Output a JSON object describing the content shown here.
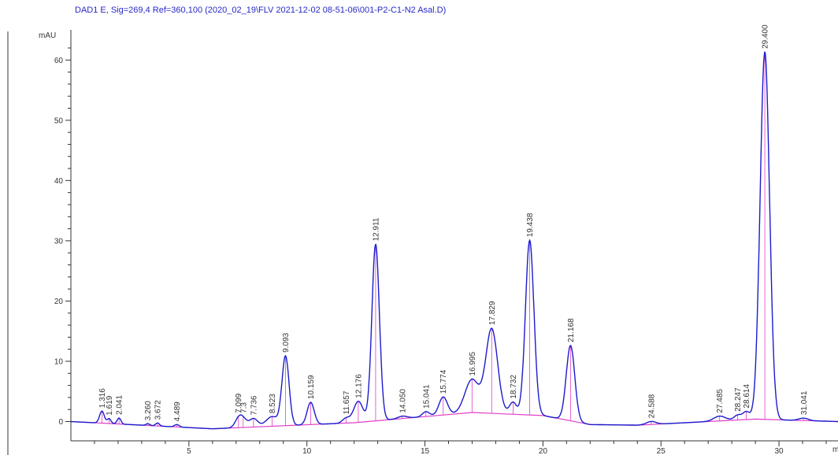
{
  "chart_data": {
    "type": "line",
    "title": "DAD1 E, Sig=269,4 Ref=360,100 (2020_02_19\\FLV 2021-12-02 08-51-06\\001-P2-C1-N2 Asal.D)",
    "ylabel": "mAU",
    "xlabel": "",
    "x_unit_label": "m",
    "xlim": [
      0,
      32.5
    ],
    "ylim": [
      -3.2,
      65
    ],
    "x_ticks": [
      5,
      10,
      15,
      20,
      25,
      30
    ],
    "x_tick_labels": [
      "5",
      "10",
      "15",
      "20",
      "25",
      "30"
    ],
    "y_ticks": [
      0,
      10,
      20,
      30,
      40,
      50,
      60
    ],
    "y_tick_labels": [
      "0",
      "10",
      "20",
      "30",
      "40",
      "50",
      "60"
    ],
    "grid": false,
    "colors": {
      "signal": "#1c1ccc",
      "baseline": "#e040c8",
      "title": "#2828c8",
      "axis": "#333333"
    },
    "peaks": [
      {
        "rt": 1.316,
        "label": "1.316",
        "height": 2.0,
        "width": 0.1
      },
      {
        "rt": 1.619,
        "label": "1.619",
        "height": 0.8,
        "width": 0.08
      },
      {
        "rt": 2.041,
        "label": "2.041",
        "height": 1.0,
        "width": 0.08
      },
      {
        "rt": 3.26,
        "label": "3.260",
        "height": 0.3,
        "width": 0.08
      },
      {
        "rt": 3.672,
        "label": "3.672",
        "height": 0.5,
        "width": 0.08
      },
      {
        "rt": 4.489,
        "label": "4.489",
        "height": 0.4,
        "width": 0.1
      },
      {
        "rt": 7.099,
        "label": "7.099",
        "height": 1.4,
        "width": 0.15
      },
      {
        "rt": 7.3,
        "label": "7.3",
        "height": 1.2,
        "width": 0.15
      },
      {
        "rt": 7.736,
        "label": "7.736",
        "height": 1.4,
        "width": 0.18
      },
      {
        "rt": 8.523,
        "label": "8.523",
        "height": 1.6,
        "width": 0.25
      },
      {
        "rt": 9.093,
        "label": "9.093",
        "height": 11.5,
        "width": 0.15
      },
      {
        "rt": 10.159,
        "label": "10.159",
        "height": 3.7,
        "width": 0.15
      },
      {
        "rt": 11.657,
        "label": "11.657",
        "height": 0.8,
        "width": 0.15
      },
      {
        "rt": 12.176,
        "label": "12.176",
        "height": 3.5,
        "width": 0.2
      },
      {
        "rt": 12.911,
        "label": "12.911",
        "height": 29.3,
        "width": 0.16
      },
      {
        "rt": 14.05,
        "label": "14.050",
        "height": 0.4,
        "width": 0.2
      },
      {
        "rt": 15.041,
        "label": "15.041",
        "height": 0.8,
        "width": 0.15
      },
      {
        "rt": 15.774,
        "label": "15.774",
        "height": 3.0,
        "width": 0.18
      },
      {
        "rt": 16.995,
        "label": "16.995",
        "height": 5.5,
        "width": 0.3
      },
      {
        "rt": 17.829,
        "label": "17.829",
        "height": 14.0,
        "width": 0.25
      },
      {
        "rt": 18.732,
        "label": "18.732",
        "height": 2.0,
        "width": 0.15
      },
      {
        "rt": 19.438,
        "label": "19.438",
        "height": 29.0,
        "width": 0.18
      },
      {
        "rt": 21.168,
        "label": "21.168",
        "height": 12.5,
        "width": 0.18
      },
      {
        "rt": 24.588,
        "label": "24.588",
        "height": 0.5,
        "width": 0.2
      },
      {
        "rt": 27.485,
        "label": "27.485",
        "height": 0.8,
        "width": 0.25
      },
      {
        "rt": 28.247,
        "label": "28.247",
        "height": 0.8,
        "width": 0.15
      },
      {
        "rt": 28.614,
        "label": "28.614",
        "height": 1.3,
        "width": 0.15
      },
      {
        "rt": 29.4,
        "label": "29.400",
        "height": 61.0,
        "width": 0.2
      },
      {
        "rt": 31.041,
        "label": "31.041",
        "height": 0.4,
        "width": 0.2
      }
    ],
    "baseline": [
      {
        "x": 0,
        "y": 0
      },
      {
        "x": 6,
        "y": -1.2
      },
      {
        "x": 12,
        "y": -0.2
      },
      {
        "x": 17,
        "y": 1.5
      },
      {
        "x": 20,
        "y": 1.0
      },
      {
        "x": 22,
        "y": -0.5
      },
      {
        "x": 24,
        "y": -0.6
      },
      {
        "x": 29,
        "y": 0.4
      },
      {
        "x": 32.5,
        "y": 0
      }
    ]
  }
}
